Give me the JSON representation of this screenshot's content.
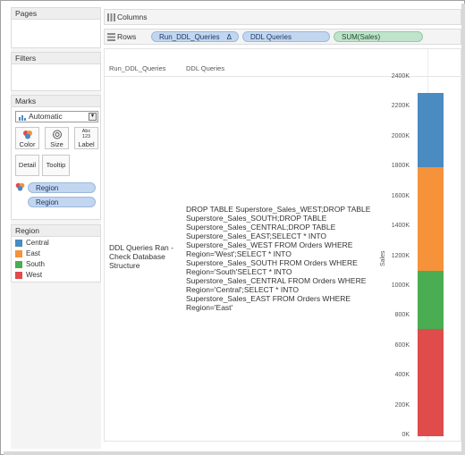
{
  "panels": {
    "pages": "Pages",
    "filters": "Filters",
    "marks": "Marks",
    "legend": "Region"
  },
  "marks": {
    "mark_type": "Automatic",
    "buttons": {
      "color": "Color",
      "size": "Size",
      "label": "Label",
      "detail": "Detail",
      "tooltip": "Tooltip"
    },
    "label_icon_text": "Abc\n123",
    "pills": [
      "Region",
      "Region"
    ]
  },
  "legend_items": [
    {
      "label": "Central",
      "color": "#4a8bc1"
    },
    {
      "label": "East",
      "color": "#f5923a"
    },
    {
      "label": "South",
      "color": "#4aad52"
    },
    {
      "label": "West",
      "color": "#e04b4b"
    }
  ],
  "shelves": {
    "columns_label": "Columns",
    "rows_label": "Rows",
    "rows_pills": [
      {
        "label": "Run_DDL_Queries",
        "type": "blue",
        "has_delta": true
      },
      {
        "label": "DDL Queries",
        "type": "blue",
        "has_delta": false
      },
      {
        "label": "SUM(Sales)",
        "type": "green",
        "has_delta": false
      }
    ],
    "delta_glyph": "Δ"
  },
  "view": {
    "header_run": "Run_DDL_Queries",
    "header_ddl": "DDL Queries",
    "run_value_lines": [
      "DDL Queries Ran -",
      "Check Database",
      "Structure"
    ],
    "ddl_value_lines": [
      "DROP TABLE Superstore_Sales_WEST;DROP TABLE",
      "Superstore_Sales_SOUTH;DROP TABLE",
      "Superstore_Sales_CENTRAL;DROP TABLE",
      "Superstore_Sales_EAST;SELECT * INTO",
      "Superstore_Sales_WEST FROM Orders WHERE",
      "Region='West';SELECT * INTO",
      "Superstore_Sales_SOUTH FROM Orders WHERE",
      "Region='South'SELECT * INTO",
      "Superstore_Sales_CENTRAL FROM Orders WHERE",
      "Region='Central';SELECT * INTO",
      "Superstore_Sales_EAST FROM Orders WHERE",
      "Region='East'"
    ]
  },
  "chart_data": {
    "type": "bar",
    "stacked": true,
    "ylabel": "Sales",
    "ylim": [
      0,
      2400000
    ],
    "yticks": [
      "0K",
      "200K",
      "400K",
      "600K",
      "800K",
      "1000K",
      "1200K",
      "1400K",
      "1600K",
      "1800K",
      "2000K",
      "2200K",
      "2400K"
    ],
    "series": [
      {
        "name": "West",
        "value": 720000,
        "color": "#e04b4b"
      },
      {
        "name": "South",
        "value": 390000,
        "color": "#4aad52"
      },
      {
        "name": "East",
        "value": 690000,
        "color": "#f5923a"
      },
      {
        "name": "Central",
        "value": 500000,
        "color": "#4a8bc1"
      }
    ]
  }
}
